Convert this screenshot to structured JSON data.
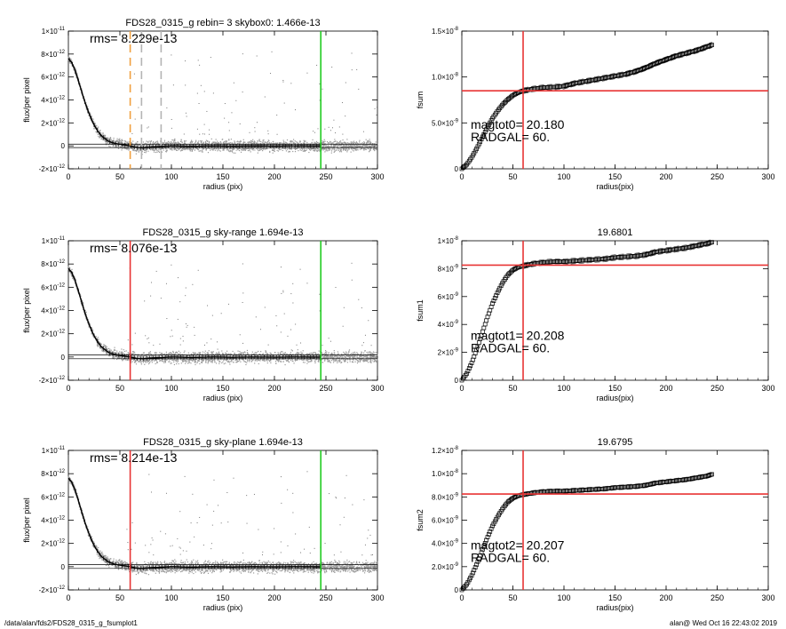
{
  "footer": {
    "path": "/data/alan/fds2/FDS28_0315_g_fsumplot1",
    "stamp": "alan@  Wed Oct 16 22:43:02 2019"
  },
  "colors": {
    "red": "#e83434",
    "green": "#22cc22",
    "orange": "#f0a040",
    "gray_points": "#9a9a9a",
    "lightgray_lines": "#b4b4b4"
  },
  "chart_data": [
    {
      "type": "scatter",
      "title": "FDS28_0315_g rebin= 3   skybox0:  1.466e-13",
      "xlabel": "radius (pix)",
      "ylabel": "flux/per pixel",
      "xlim": [
        0,
        300
      ],
      "ylim": [
        -2e-12,
        1e-11
      ],
      "xticks": [
        0,
        50,
        100,
        150,
        200,
        250,
        300
      ],
      "yticks": [
        -2e-12,
        0,
        2e-12,
        4e-12,
        6e-12,
        8e-12,
        1e-11
      ],
      "ytick_labels": [
        [
          "-2×10",
          "-12"
        ],
        [
          "0",
          ""
        ],
        [
          "2×10",
          "-12"
        ],
        [
          "4×10",
          "-12"
        ],
        [
          "6×10",
          "-12"
        ],
        [
          "8×10",
          "-12"
        ],
        [
          "1×10",
          "-11"
        ]
      ],
      "annotation": "rms= 8.229e-13",
      "profile": {
        "x": [
          0,
          3,
          6,
          9,
          12,
          15,
          18,
          21,
          24,
          27,
          30,
          33,
          36,
          39,
          42,
          45,
          48,
          51,
          54,
          57,
          60,
          66,
          72,
          80,
          90,
          100,
          120,
          140,
          160,
          180,
          200,
          220,
          245
        ],
        "y": [
          7.6e-12,
          7.3e-12,
          6.7e-12,
          5.9e-12,
          5e-12,
          4.1e-12,
          3.3e-12,
          2.6e-12,
          2e-12,
          1.5e-12,
          1.1e-12,
          8e-13,
          6e-13,
          4e-13,
          3e-13,
          2.2e-13,
          1.6e-13,
          1.2e-13,
          8e-14,
          4e-14,
          0,
          -1.5e-13,
          -1.8e-13,
          -1e-13,
          -5e-14,
          0,
          -4e-14,
          0,
          -3e-14,
          0,
          -2e-14,
          0,
          -1e-14
        ]
      },
      "scatter_band": {
        "x_range": [
          0,
          300
        ],
        "spread": 7e-13
      },
      "outliers": {
        "x_range": [
          55,
          300
        ],
        "y_range": [
          1e-12,
          8.5e-12
        ],
        "count": 90
      },
      "horizontal_lines": [
        1.466e-13,
        -1.5e-13
      ],
      "vertical_lines": [
        {
          "x": 60,
          "color": "#f0a040",
          "style": "dashed"
        },
        {
          "x": 71,
          "color": "#b4b4b4",
          "style": "dashed"
        },
        {
          "x": 90,
          "color": "#b4b4b4",
          "style": "dashed"
        },
        {
          "x": 245,
          "color": "#22cc22",
          "style": "solid"
        }
      ],
      "grid": false
    },
    {
      "type": "line",
      "title": "",
      "xlabel": "radius(pix)",
      "ylabel": "fsum",
      "xlim": [
        0,
        300
      ],
      "ylim": [
        0,
        1.5e-08
      ],
      "xticks": [
        0,
        50,
        100,
        150,
        200,
        250,
        300
      ],
      "yticks": [
        0,
        5e-09,
        1e-08,
        1.5e-08
      ],
      "ytick_labels": [
        [
          "0",
          ""
        ],
        [
          "5.0×10",
          "-9"
        ],
        [
          "1.0×10",
          "-8"
        ],
        [
          "1.5×10",
          "-8"
        ]
      ],
      "annotations": [
        "magtot0=  20.180",
        "RADGAL=     60."
      ],
      "series": [
        {
          "x": [
            0,
            5,
            10,
            15,
            20,
            25,
            30,
            35,
            40,
            45,
            50,
            55,
            60,
            70,
            80,
            90,
            100,
            110,
            120,
            130,
            140,
            150,
            160,
            170,
            180,
            190,
            200,
            210,
            220,
            230,
            240,
            245
          ],
          "values": [
            0,
            5e-10,
            1.3e-09,
            2.3e-09,
            3.4e-09,
            4.5e-09,
            5.5e-09,
            6.3e-09,
            7e-09,
            7.55e-09,
            8e-09,
            8.3e-09,
            8.5e-09,
            8.7e-09,
            8.85e-09,
            8.9e-09,
            9e-09,
            9.3e-09,
            9.5e-09,
            9.7e-09,
            9.9e-09,
            1.01e-08,
            1.03e-08,
            1.06e-08,
            1.1e-08,
            1.15e-08,
            1.19e-08,
            1.23e-08,
            1.26e-08,
            1.29e-08,
            1.33e-08,
            1.35e-08
          ]
        }
      ],
      "envelope": 3e-10,
      "crosshair": {
        "x": 60,
        "y": 8.5e-09,
        "color": "#e83434"
      },
      "grid": false
    },
    {
      "type": "scatter",
      "title": "FDS28_0315_g sky-range  1.694e-13",
      "xlabel": "radius (pix)",
      "ylabel": "flux/per pixel",
      "xlim": [
        0,
        300
      ],
      "ylim": [
        -2e-12,
        1e-11
      ],
      "xticks": [
        0,
        50,
        100,
        150,
        200,
        250,
        300
      ],
      "yticks": [
        -2e-12,
        0,
        2e-12,
        4e-12,
        6e-12,
        8e-12,
        1e-11
      ],
      "ytick_labels": [
        [
          "-2×10",
          "-12"
        ],
        [
          "0",
          ""
        ],
        [
          "2×10",
          "-12"
        ],
        [
          "4×10",
          "-12"
        ],
        [
          "6×10",
          "-12"
        ],
        [
          "8×10",
          "-12"
        ],
        [
          "1×10",
          "-11"
        ]
      ],
      "annotation": "rms= 8.076e-13",
      "profile": {
        "x": [
          0,
          3,
          6,
          9,
          12,
          15,
          18,
          21,
          24,
          27,
          30,
          33,
          36,
          39,
          42,
          45,
          48,
          51,
          54,
          57,
          60,
          66,
          72,
          80,
          90,
          100,
          120,
          140,
          160,
          180,
          200,
          220,
          245
        ],
        "y": [
          7.6e-12,
          7.3e-12,
          6.7e-12,
          5.9e-12,
          5e-12,
          4.1e-12,
          3.3e-12,
          2.6e-12,
          2e-12,
          1.5e-12,
          1.1e-12,
          8e-13,
          6e-13,
          4e-13,
          3e-13,
          2.2e-13,
          1.6e-13,
          1.2e-13,
          8e-14,
          4e-14,
          0,
          -1.2e-13,
          -1.5e-13,
          -9e-14,
          -5e-14,
          0,
          -4e-14,
          0,
          -3e-14,
          0,
          -2e-14,
          0,
          -1e-14
        ]
      },
      "scatter_band": {
        "x_range": [
          0,
          300
        ],
        "spread": 7e-13
      },
      "outliers": {
        "x_range": [
          55,
          300
        ],
        "y_range": [
          1e-12,
          8.5e-12
        ],
        "count": 90
      },
      "horizontal_lines": [
        1.694e-13,
        -1.5e-13
      ],
      "vertical_lines": [
        {
          "x": 60,
          "color": "#e83434",
          "style": "solid"
        },
        {
          "x": 245,
          "color": "#22cc22",
          "style": "solid"
        }
      ],
      "grid": false
    },
    {
      "type": "line",
      "title": "19.6801",
      "xlabel": "radius(pix)",
      "ylabel": "fsum1",
      "xlim": [
        0,
        300
      ],
      "ylim": [
        0,
        1e-08
      ],
      "xticks": [
        0,
        50,
        100,
        150,
        200,
        250,
        300
      ],
      "yticks": [
        0,
        2e-09,
        4e-09,
        6e-09,
        8e-09,
        1e-08
      ],
      "ytick_labels": [
        [
          "0",
          ""
        ],
        [
          "2×10",
          "-9"
        ],
        [
          "4×10",
          "-9"
        ],
        [
          "6×10",
          "-9"
        ],
        [
          "8×10",
          "-9"
        ],
        [
          "1×10",
          "-8"
        ]
      ],
      "annotations": [
        "magtot1=  20.208",
        "RADGAL=     60."
      ],
      "series": [
        {
          "x": [
            0,
            5,
            10,
            15,
            20,
            25,
            30,
            35,
            40,
            45,
            50,
            55,
            60,
            70,
            80,
            90,
            100,
            110,
            120,
            130,
            140,
            150,
            160,
            170,
            180,
            190,
            200,
            210,
            220,
            230,
            240,
            245
          ],
          "values": [
            0,
            5e-10,
            1.3e-09,
            2.3e-09,
            3.4e-09,
            4.5e-09,
            5.5e-09,
            6.3e-09,
            7e-09,
            7.55e-09,
            7.9e-09,
            8.1e-09,
            8.2e-09,
            8.35e-09,
            8.45e-09,
            8.5e-09,
            8.5e-09,
            8.55e-09,
            8.6e-09,
            8.65e-09,
            8.7e-09,
            8.8e-09,
            8.85e-09,
            8.9e-09,
            9e-09,
            9.2e-09,
            9.3e-09,
            9.4e-09,
            9.5e-09,
            9.65e-09,
            9.8e-09,
            9.9e-09
          ]
        }
      ],
      "envelope": 2e-10,
      "crosshair": {
        "x": 60,
        "y": 8.25e-09,
        "color": "#e83434"
      },
      "grid": false
    },
    {
      "type": "scatter",
      "title": "FDS28_0315_g sky-plane  1.694e-13",
      "xlabel": "radius (pix)",
      "ylabel": "flux/per pixel",
      "xlim": [
        0,
        300
      ],
      "ylim": [
        -2e-12,
        1e-11
      ],
      "xticks": [
        0,
        50,
        100,
        150,
        200,
        250,
        300
      ],
      "yticks": [
        -2e-12,
        0,
        2e-12,
        4e-12,
        6e-12,
        8e-12,
        1e-11
      ],
      "ytick_labels": [
        [
          "-2×10",
          "-12"
        ],
        [
          "0",
          ""
        ],
        [
          "2×10",
          "-12"
        ],
        [
          "4×10",
          "-12"
        ],
        [
          "6×10",
          "-12"
        ],
        [
          "8×10",
          "-12"
        ],
        [
          "1×10",
          "-11"
        ]
      ],
      "annotation": "rms= 8.214e-13",
      "profile": {
        "x": [
          0,
          3,
          6,
          9,
          12,
          15,
          18,
          21,
          24,
          27,
          30,
          33,
          36,
          39,
          42,
          45,
          48,
          51,
          54,
          57,
          60,
          66,
          72,
          80,
          90,
          100,
          120,
          140,
          160,
          180,
          200,
          220,
          245
        ],
        "y": [
          7.6e-12,
          7.3e-12,
          6.7e-12,
          5.9e-12,
          5e-12,
          4.1e-12,
          3.3e-12,
          2.6e-12,
          2e-12,
          1.5e-12,
          1.1e-12,
          8e-13,
          6e-13,
          4e-13,
          3e-13,
          2.2e-13,
          1.6e-13,
          1.2e-13,
          8e-14,
          4e-14,
          0,
          -1.2e-13,
          -1.5e-13,
          -9e-14,
          -5e-14,
          0,
          -4e-14,
          0,
          -3e-14,
          0,
          -2e-14,
          0,
          -1e-14
        ]
      },
      "scatter_band": {
        "x_range": [
          0,
          300
        ],
        "spread": 7e-13
      },
      "outliers": {
        "x_range": [
          55,
          300
        ],
        "y_range": [
          1e-12,
          8.5e-12
        ],
        "count": 90
      },
      "horizontal_lines": [
        1.694e-13,
        -1.5e-13
      ],
      "vertical_lines": [
        {
          "x": 60,
          "color": "#e83434",
          "style": "solid"
        },
        {
          "x": 245,
          "color": "#22cc22",
          "style": "solid"
        }
      ],
      "grid": false
    },
    {
      "type": "line",
      "title": "19.6795",
      "xlabel": "radius(pix)",
      "ylabel": "fsum2",
      "xlim": [
        0,
        300
      ],
      "ylim": [
        0,
        1.2e-08
      ],
      "xticks": [
        0,
        50,
        100,
        150,
        200,
        250,
        300
      ],
      "yticks": [
        0,
        2e-09,
        4e-09,
        6e-09,
        8e-09,
        1e-08,
        1.2e-08
      ],
      "ytick_labels": [
        [
          "0",
          ""
        ],
        [
          "2.0×10",
          "-9"
        ],
        [
          "4.0×10",
          "-9"
        ],
        [
          "6.0×10",
          "-9"
        ],
        [
          "8.0×10",
          "-9"
        ],
        [
          "1.0×10",
          "-8"
        ],
        [
          "1.2×10",
          "-8"
        ]
      ],
      "annotations": [
        "magtot2=  20.207",
        "RADGAL=     60."
      ],
      "series": [
        {
          "x": [
            0,
            5,
            10,
            15,
            20,
            25,
            30,
            35,
            40,
            45,
            50,
            55,
            60,
            70,
            80,
            90,
            100,
            110,
            120,
            130,
            140,
            150,
            160,
            170,
            180,
            190,
            200,
            210,
            220,
            230,
            240,
            245
          ],
          "values": [
            0,
            5e-10,
            1.3e-09,
            2.3e-09,
            3.4e-09,
            4.5e-09,
            5.5e-09,
            6.3e-09,
            7e-09,
            7.55e-09,
            7.9e-09,
            8.1e-09,
            8.2e-09,
            8.35e-09,
            8.45e-09,
            8.5e-09,
            8.5e-09,
            8.55e-09,
            8.6e-09,
            8.65e-09,
            8.7e-09,
            8.8e-09,
            8.85e-09,
            8.9e-09,
            9e-09,
            9.2e-09,
            9.3e-09,
            9.4e-09,
            9.5e-09,
            9.65e-09,
            9.8e-09,
            9.95e-09
          ]
        }
      ],
      "envelope": 2e-10,
      "crosshair": {
        "x": 60,
        "y": 8.25e-09,
        "color": "#e83434"
      },
      "grid": false
    }
  ]
}
